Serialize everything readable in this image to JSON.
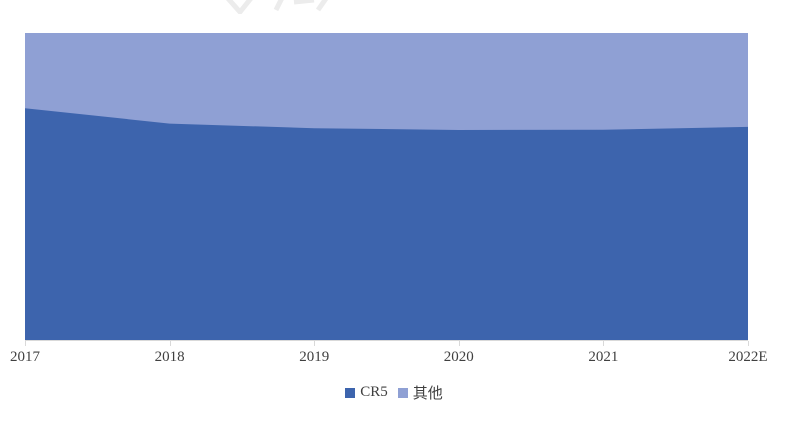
{
  "chart_data": {
    "type": "area",
    "stacked": true,
    "percent_stacked": true,
    "categories": [
      "2017",
      "2018",
      "2019",
      "2020",
      "2021",
      "2022E"
    ],
    "series": [
      {
        "name": "CR5",
        "color": "#3d64ad",
        "values": [
          75.5,
          70.5,
          69.0,
          68.4,
          68.5,
          69.4
        ]
      },
      {
        "name": "其他",
        "color": "#8fa0d4",
        "values": [
          24.5,
          29.5,
          31.0,
          31.6,
          31.5,
          30.6
        ]
      }
    ],
    "title": "",
    "xlabel": "",
    "ylabel": "",
    "ylim": [
      0,
      100
    ],
    "grid": false,
    "y_axis_labels_visible": false,
    "legend_position": "bottom",
    "axis_line_color": "#d9d9d9",
    "tick_color": "#d9d9d9",
    "tick_label_color": "#404040"
  }
}
